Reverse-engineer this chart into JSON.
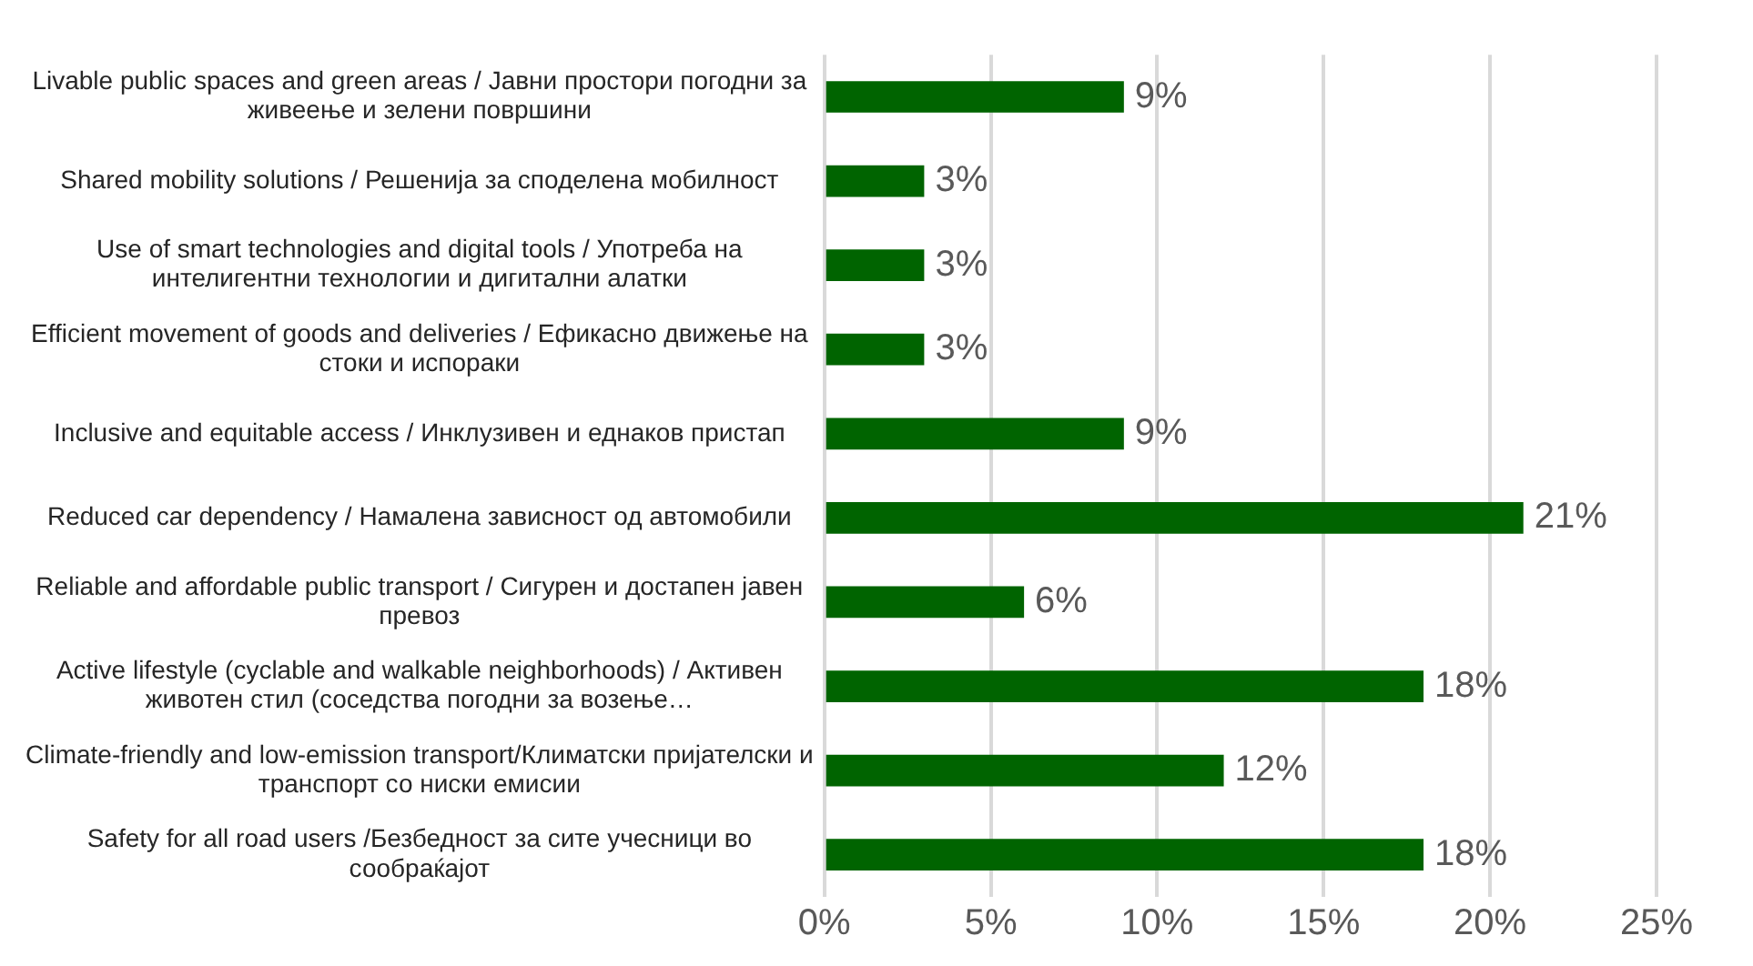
{
  "chart_data": {
    "type": "bar",
    "orientation": "horizontal",
    "categories": [
      "Livable public spaces and green areas / Јавни простори погодни за живеење и зелени површини",
      "Shared mobility solutions / Решенија за споделена мобилност",
      "Use of smart technologies and digital tools / Употреба на интелигентни технологии и дигитални алатки",
      "Efficient movement of goods and deliveries / Ефикасно движење на стоки и испораки",
      "Inclusive and equitable access / Инклузивен и еднаков пристап",
      "Reduced car dependency / Намалена зависност од автомобили",
      "Reliable and affordable public transport / Сигурен и достапен јавен превоз",
      "Active lifestyle (cyclable and walkable neighborhoods) / Активен животен стил (соседства погодни за возење…",
      "Climate-friendly and low-emission transport/Климатски пријателски и транспорт со ниски емисии",
      "Safety for all road users /Безбедност за сите учесници во сообраќајот"
    ],
    "values": [
      9,
      3,
      3,
      3,
      9,
      21,
      6,
      18,
      12,
      18
    ],
    "color": "#006400",
    "xlim": [
      0,
      25
    ],
    "xticks": [
      {
        "value": 0,
        "label": "0%"
      },
      {
        "value": 5,
        "label": "5%"
      },
      {
        "value": 10,
        "label": "10%"
      },
      {
        "value": 15,
        "label": "15%"
      },
      {
        "value": 20,
        "label": "20%"
      },
      {
        "value": 25,
        "label": "25%"
      }
    ],
    "value_labels": [
      "9%",
      "3%",
      "3%",
      "3%",
      "9%",
      "21%",
      "6%",
      "18%",
      "12%",
      "18%"
    ],
    "grid": "x"
  }
}
